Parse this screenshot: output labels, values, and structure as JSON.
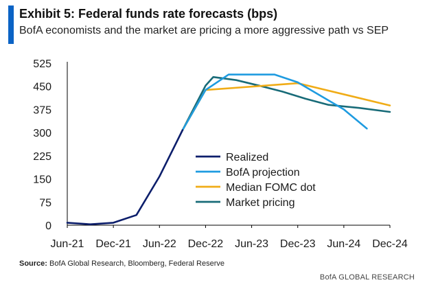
{
  "header": {
    "title": "Exhibit 5: Federal funds rate forecasts (bps)",
    "subtitle": "BofA economists and the market are pricing a more aggressive path vs SEP"
  },
  "source": {
    "label": "Source:",
    "text": "BofA Global Research, Bloomberg, Federal Reserve"
  },
  "brand": {
    "text": "BofA GLOBAL RESEARCH"
  },
  "colors": {
    "accent": "#0b63c5",
    "axis": "#000000",
    "text": "#1a1a1a"
  },
  "chart_data": {
    "type": "line",
    "title": "Exhibit 5: Federal funds rate forecasts (bps)",
    "xlabel": "",
    "ylabel": "",
    "ylim": [
      0,
      525
    ],
    "xlim": [
      "Jun-21",
      "Dec-24"
    ],
    "y_ticks": [
      0,
      75,
      150,
      225,
      300,
      375,
      450,
      525
    ],
    "x_ticks": [
      "Jun-21",
      "Dec-21",
      "Jun-22",
      "Dec-22",
      "Jun-23",
      "Dec-23",
      "Jun-24",
      "Dec-24"
    ],
    "legend_position": "center-left",
    "grid": false,
    "series": [
      {
        "name": "Realized",
        "color": "#0c1e6b",
        "points": [
          {
            "x": "Jun-21",
            "y": 8
          },
          {
            "x": "Sep-21",
            "y": 3
          },
          {
            "x": "Dec-21",
            "y": 8
          },
          {
            "x": "Mar-22",
            "y": 33
          },
          {
            "x": "Jun-22",
            "y": 158
          },
          {
            "x": "Sep-22",
            "y": 308
          }
        ]
      },
      {
        "name": "BofA projection",
        "color": "#1e9be0",
        "points": [
          {
            "x": "Sep-22",
            "y": 308
          },
          {
            "x": "Dec-22",
            "y": 438
          },
          {
            "x": "Mar-23",
            "y": 488
          },
          {
            "x": "Sep-23",
            "y": 488
          },
          {
            "x": "Dec-23",
            "y": 463
          },
          {
            "x": "Jun-24",
            "y": 375
          },
          {
            "x": "Sep-24",
            "y": 313
          }
        ]
      },
      {
        "name": "Median FOMC dot",
        "color": "#f0ac17",
        "points": [
          {
            "x": "Sep-22",
            "y": 308
          },
          {
            "x": "Dec-22",
            "y": 438
          },
          {
            "x": "Dec-23",
            "y": 460
          },
          {
            "x": "Dec-24",
            "y": 388
          }
        ]
      },
      {
        "name": "Market pricing",
        "color": "#186b78",
        "points": [
          {
            "x": "Sep-22",
            "y": 308
          },
          {
            "x": "Dec-22",
            "y": 452
          },
          {
            "x": "Jan-23",
            "y": 480
          },
          {
            "x": "Apr-23",
            "y": 470
          },
          {
            "x": "Jul-23",
            "y": 452
          },
          {
            "x": "Oct-23",
            "y": 433
          },
          {
            "x": "Jan-24",
            "y": 410
          },
          {
            "x": "Apr-24",
            "y": 390
          },
          {
            "x": "Aug-24",
            "y": 380
          },
          {
            "x": "Dec-24",
            "y": 367
          }
        ]
      }
    ]
  }
}
